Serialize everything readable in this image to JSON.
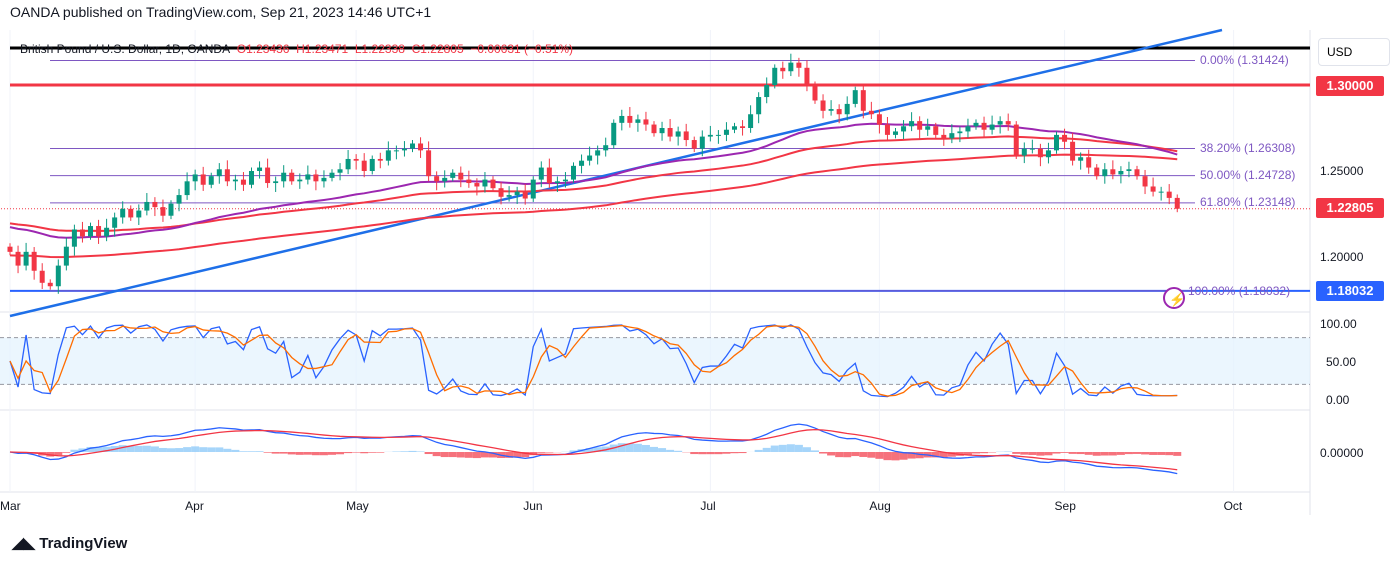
{
  "header": {
    "publisher": "OANDA published on TradingView.com, Sep 21, 2023 14:46 UTC+1"
  },
  "legend": {
    "symbol": "British Pound / U.S. Dollar, 1D, OANDA",
    "o": "O1.23436",
    "h": "H1.23471",
    "l": "L1.22338",
    "c": "C1.22805",
    "chg": "−0.00631 (−0.51%)"
  },
  "currency": "USD",
  "price_axis": [
    "1.25000",
    "1.20000"
  ],
  "price_tags": {
    "resistance": "1.30000",
    "last": "1.22805",
    "support": "1.18032"
  },
  "colors": {
    "up": "#089981",
    "down": "#f23645",
    "fib": "#7e57c2",
    "trend": "#1e6fe8",
    "ma_long": "#f23645",
    "ma_mid": "#9c27b0"
  },
  "fib_levels": [
    {
      "label": "0.00% (1.31424)",
      "price": 1.31424
    },
    {
      "label": "38.20% (1.26308)",
      "price": 1.26308
    },
    {
      "label": "50.00% (1.24728)",
      "price": 1.24728
    },
    {
      "label": "61.80% (1.23148)",
      "price": 1.23148
    },
    {
      "label": "100.00% (1.18032)",
      "price": 1.18032
    }
  ],
  "osc_axis": [
    "100.00",
    "50.00",
    "0.00"
  ],
  "macd_axis": [
    "0.00000"
  ],
  "time_axis": [
    {
      "label": "Mar",
      "i": 0
    },
    {
      "label": "Apr",
      "i": 23
    },
    {
      "label": "May",
      "i": 43
    },
    {
      "label": "Jun",
      "i": 65
    },
    {
      "label": "Jul",
      "i": 87
    },
    {
      "label": "Aug",
      "i": 108
    },
    {
      "label": "Sep",
      "i": 131
    },
    {
      "label": "Oct",
      "i": 152
    }
  ],
  "footer": {
    "logo": "TradingView"
  },
  "chart_data": {
    "type": "candlestick",
    "last_candle": {
      "open": 1.23436,
      "high": 1.23471,
      "low": 1.22338,
      "close": 1.22805
    },
    "closes": [
      1.203,
      1.195,
      1.203,
      1.192,
      1.185,
      1.183,
      1.195,
      1.206,
      1.216,
      1.212,
      1.218,
      1.212,
      1.217,
      1.223,
      1.228,
      1.223,
      1.227,
      1.232,
      1.229,
      1.224,
      1.231,
      1.236,
      1.244,
      1.248,
      1.242,
      1.247,
      1.251,
      1.244,
      1.245,
      1.242,
      1.25,
      1.252,
      1.243,
      1.244,
      1.249,
      1.244,
      1.245,
      1.248,
      1.244,
      1.246,
      1.249,
      1.251,
      1.257,
      1.256,
      1.25,
      1.257,
      1.256,
      1.262,
      1.262,
      1.263,
      1.266,
      1.262,
      1.247,
      1.244,
      1.246,
      1.249,
      1.245,
      1.243,
      1.241,
      1.245,
      1.24,
      1.235,
      1.236,
      1.238,
      1.234,
      1.245,
      1.252,
      1.243,
      1.244,
      1.245,
      1.253,
      1.256,
      1.259,
      1.262,
      1.265,
      1.278,
      1.282,
      1.278,
      1.28,
      1.277,
      1.272,
      1.275,
      1.27,
      1.273,
      1.268,
      1.263,
      1.27,
      1.271,
      1.271,
      1.274,
      1.276,
      1.275,
      1.283,
      1.293,
      1.3,
      1.31,
      1.308,
      1.313,
      1.31,
      1.3,
      1.291,
      1.285,
      1.286,
      1.283,
      1.289,
      1.297,
      1.285,
      1.283,
      1.277,
      1.271,
      1.273,
      1.276,
      1.279,
      1.274,
      1.276,
      1.271,
      1.269,
      1.272,
      1.273,
      1.276,
      1.278,
      1.274,
      1.277,
      1.279,
      1.277,
      1.259,
      1.263,
      1.263,
      1.258,
      1.262,
      1.271,
      1.267,
      1.256,
      1.258,
      1.252,
      1.247,
      1.251,
      1.248,
      1.25,
      1.251,
      1.247,
      1.241,
      1.238,
      1.238,
      1.23436,
      1.22805
    ],
    "horizontal_lines": [
      1.3215,
      1.3,
      1.18032
    ]
  }
}
